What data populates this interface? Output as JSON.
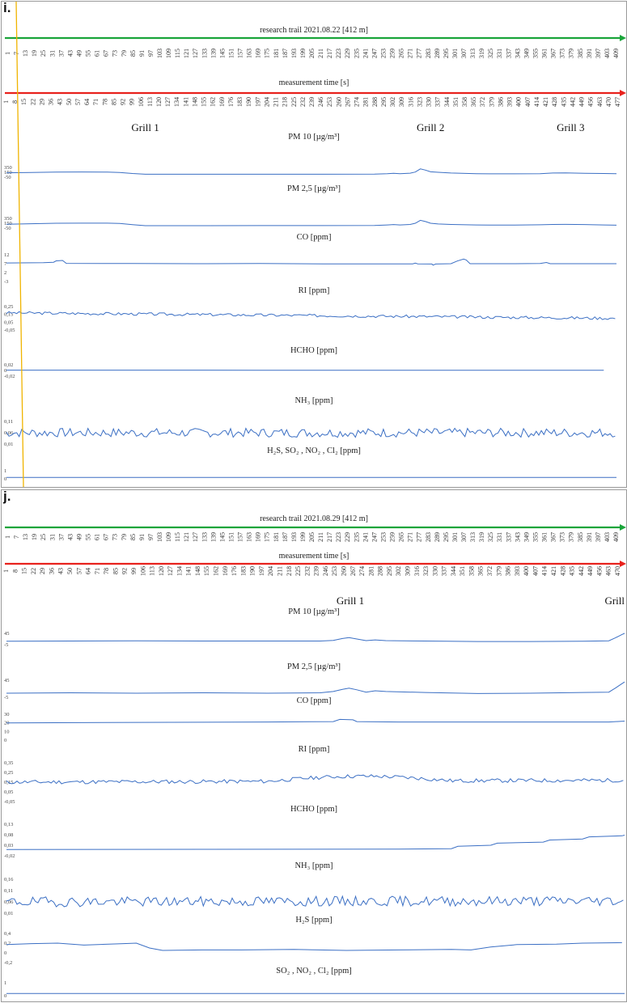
{
  "chart_data": [
    {
      "type": "line",
      "panel_label": "i.",
      "trail": {
        "title": "research trail  2021.08.22 [412 m]",
        "first": 1,
        "step": 6,
        "last": 409,
        "color": "#1aa53a"
      },
      "time": {
        "title": "measurement time  [s]",
        "ticks": [
          1,
          8,
          15,
          22,
          29,
          36,
          43,
          50,
          57,
          64,
          71,
          78,
          85,
          92,
          99,
          106,
          113,
          120,
          127,
          134,
          141,
          148,
          155,
          162,
          169,
          176,
          183,
          190,
          197,
          204,
          211,
          218,
          225,
          232,
          239,
          246,
          253,
          260,
          267,
          274,
          281,
          288,
          295,
          302,
          309,
          316,
          323,
          330,
          337,
          344,
          351,
          358,
          365,
          372,
          379,
          386,
          393,
          400,
          407,
          414,
          421,
          428,
          435,
          442,
          449,
          456,
          463,
          470,
          477
        ],
        "color": "#e8221d"
      },
      "grills": [
        {
          "label": "Grill 1",
          "t": 110
        },
        {
          "label": "Grill 2",
          "t": 334
        },
        {
          "label": "Grill 3",
          "t": 444
        }
      ],
      "marker_t": 13,
      "series": [
        {
          "name": "PM 10 [µg/m³]",
          "yticks": [
            "350",
            "150",
            "-50"
          ],
          "ylim": [
            -50,
            350
          ],
          "points": [
            [
              1,
              130
            ],
            [
              20,
              145
            ],
            [
              40,
              160
            ],
            [
              60,
              162
            ],
            [
              80,
              158
            ],
            [
              90,
              145
            ],
            [
              100,
              100
            ],
            [
              110,
              70
            ],
            [
              150,
              70
            ],
            [
              200,
              70
            ],
            [
              250,
              70
            ],
            [
              290,
              72
            ],
            [
              300,
              90
            ],
            [
              305,
              110
            ],
            [
              310,
              90
            ],
            [
              318,
              115
            ],
            [
              322,
              160
            ],
            [
              326,
              290
            ],
            [
              330,
              240
            ],
            [
              334,
              170
            ],
            [
              340,
              150
            ],
            [
              350,
              120
            ],
            [
              370,
              95
            ],
            [
              380,
              85
            ],
            [
              400,
              85
            ],
            [
              420,
              95
            ],
            [
              430,
              120
            ],
            [
              440,
              125
            ],
            [
              455,
              110
            ],
            [
              470,
              100
            ],
            [
              480,
              90
            ]
          ]
        },
        {
          "name": "PM 2,5 [µg/m³]",
          "yticks": [
            "350",
            "150",
            "-50"
          ],
          "ylim": [
            -50,
            350
          ],
          "points": [
            [
              1,
              110
            ],
            [
              20,
              130
            ],
            [
              40,
              150
            ],
            [
              60,
              155
            ],
            [
              80,
              152
            ],
            [
              90,
              140
            ],
            [
              100,
              90
            ],
            [
              110,
              50
            ],
            [
              150,
              50
            ],
            [
              200,
              52
            ],
            [
              250,
              54
            ],
            [
              290,
              56
            ],
            [
              300,
              80
            ],
            [
              305,
              95
            ],
            [
              310,
              80
            ],
            [
              318,
              100
            ],
            [
              322,
              150
            ],
            [
              326,
              270
            ],
            [
              330,
              220
            ],
            [
              334,
              150
            ],
            [
              340,
              120
            ],
            [
              350,
              100
            ],
            [
              370,
              80
            ],
            [
              380,
              75
            ],
            [
              400,
              75
            ],
            [
              420,
              85
            ],
            [
              430,
              100
            ],
            [
              440,
              105
            ],
            [
              455,
              95
            ],
            [
              470,
              80
            ],
            [
              480,
              70
            ]
          ]
        },
        {
          "name": "CO [ppm]",
          "yticks": [
            "12",
            "7",
            "2",
            "-3"
          ],
          "ylim": [
            -3,
            12
          ],
          "points": [
            [
              1,
              7.4
            ],
            [
              30,
              7.6
            ],
            [
              38,
              7.8
            ],
            [
              40,
              8.6
            ],
            [
              45,
              8.8
            ],
            [
              48,
              7.2
            ],
            [
              100,
              7.1
            ],
            [
              150,
              7.0
            ],
            [
              200,
              7.1
            ],
            [
              250,
              6.9
            ],
            [
              300,
              6.9
            ],
            [
              320,
              6.9
            ],
            [
              322,
              7.3
            ],
            [
              324,
              6.9
            ],
            [
              335,
              6.8
            ],
            [
              336,
              6.2
            ],
            [
              338,
              6.8
            ],
            [
              350,
              7.0
            ],
            [
              355,
              8.5
            ],
            [
              360,
              9.6
            ],
            [
              362,
              9.1
            ],
            [
              365,
              7.0
            ],
            [
              400,
              7.0
            ],
            [
              420,
              7.1
            ],
            [
              425,
              7.7
            ],
            [
              428,
              7.0
            ],
            [
              480,
              7.0
            ]
          ]
        },
        {
          "name": "RI [ppm]",
          "yticks": [
            "0,25",
            "0,15",
            "0,05",
            "-0,05"
          ],
          "ylim": [
            -0.05,
            0.25
          ],
          "noise": {
            "start": 1,
            "end": 480,
            "base_from": 0.17,
            "base_to": 0.1,
            "amp": 0.018,
            "seed": 3
          }
        },
        {
          "name": "HCHO [ppm]",
          "yticks": [
            "0,02",
            "0",
            "-0,02"
          ],
          "ylim": [
            -0.02,
            0.02
          ],
          "points": [
            [
              1,
              0.001
            ],
            [
              100,
              0.001
            ],
            [
              200,
              0.0008
            ],
            [
              300,
              0.0008
            ],
            [
              400,
              0.0008
            ],
            [
              470,
              0.0008
            ]
          ]
        },
        {
          "name": "NH₃ [ppm]",
          "yticks": [
            "0,11",
            "0,06",
            "0,01"
          ],
          "ylim": [
            0.01,
            0.11
          ],
          "noise": {
            "start": 1,
            "end": 480,
            "base_from": 0.06,
            "base_to": 0.06,
            "amp": 0.02,
            "seed": 7
          }
        },
        {
          "name": "H₂S, SO₂ , NO₂ , Cl₂ [ppm]",
          "yticks": [
            "1",
            "0"
          ],
          "ylim": [
            -0.2,
            1
          ],
          "points": [
            [
              1,
              0
            ],
            [
              480,
              0
            ]
          ]
        }
      ]
    },
    {
      "type": "line",
      "panel_label": "j.",
      "trail": {
        "title": "research trail 2021.08.29 [412 m]",
        "first": 1,
        "step": 6,
        "last": 409,
        "color": "#1aa53a"
      },
      "time": {
        "title": "measurement time [s]",
        "ticks": [
          1,
          8,
          15,
          22,
          29,
          36,
          43,
          50,
          57,
          64,
          71,
          78,
          85,
          92,
          99,
          106,
          113,
          120,
          127,
          134,
          141,
          148,
          155,
          162,
          169,
          176,
          183,
          190,
          197,
          204,
          211,
          218,
          225,
          232,
          239,
          246,
          253,
          260,
          267,
          274,
          281,
          288,
          295,
          302,
          309,
          316,
          323,
          330,
          337,
          344,
          351,
          358,
          365,
          372,
          379,
          386,
          393,
          400,
          407,
          414,
          421,
          428,
          435,
          442,
          449,
          456,
          463,
          470
        ],
        "color": "#e8221d"
      },
      "grills": [
        {
          "label": "Grill 1",
          "t": 263
        },
        {
          "label": "Grill",
          "t": 462
        }
      ],
      "series": [
        {
          "name": "PM 10 [µg/m³]",
          "yticks": [
            "45",
            "-5"
          ],
          "ylim": [
            -5,
            45
          ],
          "points": [
            [
              1,
              10
            ],
            [
              50,
              11
            ],
            [
              100,
              12
            ],
            [
              150,
              11
            ],
            [
              200,
              11
            ],
            [
              240,
              11
            ],
            [
              250,
              14
            ],
            [
              257,
              22
            ],
            [
              262,
              26
            ],
            [
              268,
              20
            ],
            [
              275,
              13
            ],
            [
              282,
              16
            ],
            [
              290,
              13
            ],
            [
              320,
              11
            ],
            [
              360,
              9
            ],
            [
              400,
              9
            ],
            [
              440,
              10
            ],
            [
              460,
              12
            ],
            [
              465,
              25
            ],
            [
              470,
              40
            ],
            [
              472,
              45
            ]
          ]
        },
        {
          "name": "PM 2,5 [µg/m³]",
          "yticks": [
            "45",
            "-5"
          ],
          "ylim": [
            -5,
            45
          ],
          "points": [
            [
              1,
              7
            ],
            [
              50,
              8
            ],
            [
              100,
              7
            ],
            [
              150,
              8
            ],
            [
              200,
              7
            ],
            [
              240,
              8
            ],
            [
              250,
              12
            ],
            [
              257,
              18
            ],
            [
              262,
              22
            ],
            [
              268,
              17
            ],
            [
              275,
              10
            ],
            [
              282,
              14
            ],
            [
              290,
              12
            ],
            [
              320,
              9
            ],
            [
              360,
              6
            ],
            [
              400,
              7
            ],
            [
              440,
              9
            ],
            [
              460,
              10
            ],
            [
              465,
              22
            ],
            [
              470,
              35
            ],
            [
              472,
              40
            ]
          ]
        },
        {
          "name": "CO [ppm]",
          "yticks": [
            "30",
            "20",
            "10",
            "0"
          ],
          "ylim": [
            0,
            30
          ],
          "points": [
            [
              1,
              20
            ],
            [
              100,
              20.5
            ],
            [
              200,
              21
            ],
            [
              250,
              21.5
            ],
            [
              255,
              24
            ],
            [
              265,
              23.5
            ],
            [
              268,
              21.5
            ],
            [
              300,
              21
            ],
            [
              400,
              21
            ],
            [
              460,
              21
            ],
            [
              472,
              22
            ]
          ]
        },
        {
          "name": "RI [ppm]",
          "yticks": [
            "0,35",
            "0,25",
            "0,15",
            "0,05",
            "-0,05"
          ],
          "ylim": [
            -0.05,
            0.35
          ],
          "noise": {
            "start": 1,
            "end": 472,
            "base_from": 0.15,
            "base_to": 0.17,
            "amp": 0.02,
            "seed": 11,
            "bump": [
              200,
              340,
              0.05
            ]
          }
        },
        {
          "name": "HCHO [ppm]",
          "yticks": [
            "0,13",
            "0,08",
            "0,03",
            "-0,02"
          ],
          "ylim": [
            -0.02,
            0.13
          ],
          "points": [
            [
              1,
              0.01
            ],
            [
              300,
              0.012
            ],
            [
              340,
              0.014
            ],
            [
              345,
              0.025
            ],
            [
              370,
              0.03
            ],
            [
              375,
              0.04
            ],
            [
              410,
              0.045
            ],
            [
              415,
              0.055
            ],
            [
              440,
              0.06
            ],
            [
              445,
              0.07
            ],
            [
              470,
              0.075
            ],
            [
              472,
              0.078
            ]
          ]
        },
        {
          "name": "NH₃ [ppm]",
          "yticks": [
            "0,16",
            "0,11",
            "0,06",
            "0,01"
          ],
          "ylim": [
            0.01,
            0.16
          ],
          "noise": {
            "start": 1,
            "end": 472,
            "base_from": 0.06,
            "base_to": 0.065,
            "amp": 0.022,
            "seed": 19
          }
        },
        {
          "name": "H₂S [ppm]",
          "yticks": [
            "0,4",
            "0,2",
            "0",
            "-0,2"
          ],
          "ylim": [
            -0.2,
            0.4
          ],
          "points": [
            [
              1,
              0.17
            ],
            [
              20,
              0.19
            ],
            [
              40,
              0.2
            ],
            [
              60,
              0.16
            ],
            [
              90,
              0.19
            ],
            [
              100,
              0.2
            ],
            [
              110,
              0.1
            ],
            [
              120,
              0.05
            ],
            [
              150,
              0.06
            ],
            [
              180,
              0.06
            ],
            [
              220,
              0.07
            ],
            [
              260,
              0.05
            ],
            [
              300,
              0.06
            ],
            [
              340,
              0.07
            ],
            [
              355,
              0.06
            ],
            [
              370,
              0.12
            ],
            [
              390,
              0.17
            ],
            [
              420,
              0.18
            ],
            [
              440,
              0.2
            ],
            [
              470,
              0.21
            ]
          ]
        },
        {
          "name": "SO₂ , NO₂ , Cl₂ [ppm]",
          "yticks": [
            "1",
            "0"
          ],
          "ylim": [
            -0.2,
            1
          ],
          "points": [
            [
              1,
              0
            ],
            [
              472,
              0
            ]
          ]
        }
      ]
    }
  ]
}
